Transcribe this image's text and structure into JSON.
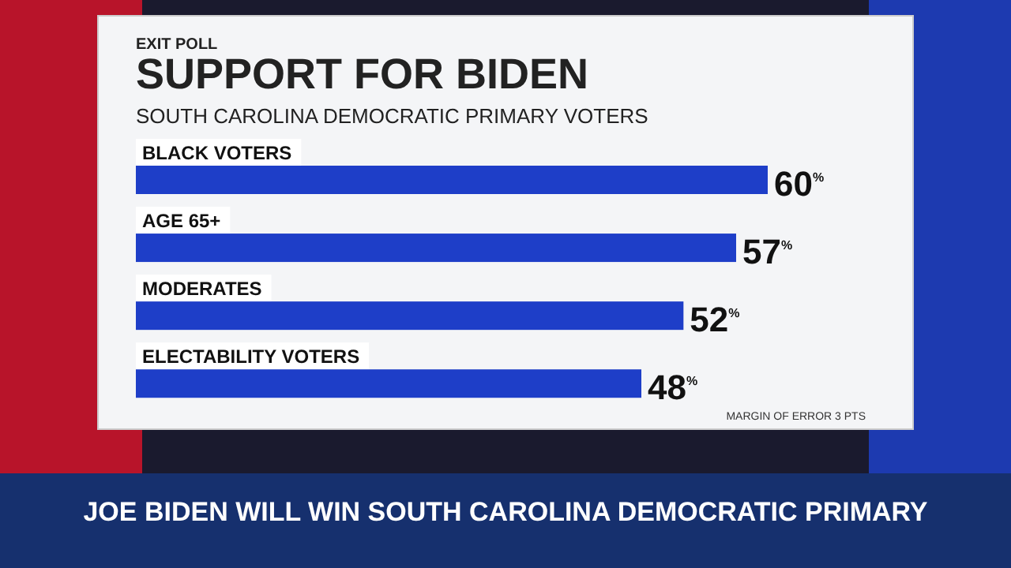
{
  "chart_data": {
    "type": "bar",
    "orientation": "horizontal",
    "title": "SUPPORT FOR BIDEN",
    "subtitle": "SOUTH CAROLINA DEMOCRATIC PRIMARY VOTERS",
    "categories": [
      "BLACK VOTERS",
      "AGE 65+",
      "MODERATES",
      "ELECTABILITY VOTERS"
    ],
    "values": [
      60,
      57,
      52,
      48
    ],
    "color": "#1e3ec8",
    "value_labels": [
      "60$^{%}$",
      "57$^{%}$",
      "52$^{%}$",
      "48$^{%}$"
    ],
    "annotations": [
      "EXIT POLL",
      "MARGIN OF ERROR 3 PTS",
      "JOE BIDEN WILL WIN SOUTH CAROLINA DEMOCRATIC PRIMARY"
    ]
  }
}
